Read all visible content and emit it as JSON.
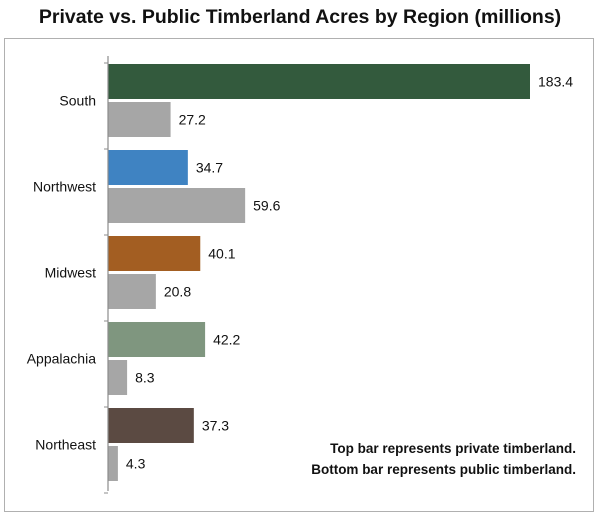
{
  "chart_data": {
    "type": "bar",
    "orientation": "horizontal",
    "title": "Private vs. Public Timberland Acres by Region (millions)",
    "categories": [
      "South",
      "Northwest",
      "Midwest",
      "Appalachia",
      "Northeast"
    ],
    "series": [
      {
        "values": [
          183.4,
          34.7,
          40.1,
          42.2,
          37.3
        ],
        "colors": [
          "#335a3d",
          "#3f83c2",
          "#a35e22",
          "#7f967f",
          "#5b4a42"
        ]
      },
      {
        "values": [
          27.2,
          59.6,
          20.8,
          8.3,
          4.3
        ],
        "color": "#a6a6a6"
      }
    ],
    "value_labels": [
      [
        "183.4",
        "34.7",
        "40.1",
        "42.2",
        "37.3"
      ],
      [
        "27.2",
        "59.6",
        "20.8",
        "8.3",
        "4.3"
      ]
    ],
    "xlim": [
      0,
      183.4
    ],
    "legend_note": [
      "Top bar represents private timberland.",
      "Bottom bar represents public timberland."
    ],
    "grid": false,
    "x_axis_visible": false
  }
}
